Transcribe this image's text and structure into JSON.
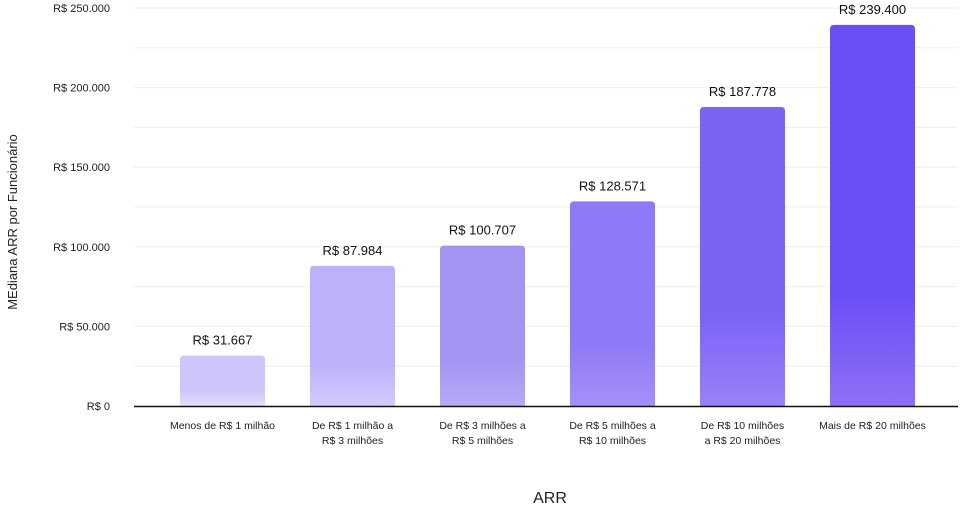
{
  "chart_data": {
    "type": "bar",
    "title": "",
    "xlabel": "ARR",
    "ylabel": "MEdiana ARR por Funcionário",
    "categories": [
      [
        "Menos de R$ 1 milhão"
      ],
      [
        "De R$ 1 milhão a",
        "R$ 3 milhões"
      ],
      [
        "De R$ 3 milhões a",
        "R$ 5 milhões"
      ],
      [
        "De R$ 5 milhões a",
        "R$ 10 milhões"
      ],
      [
        "De R$ 10 milhões",
        "a R$ 20 milhões"
      ],
      [
        "Mais de  R$ 20 milhões"
      ]
    ],
    "values": [
      31667,
      87984,
      100707,
      128571,
      187778,
      239400
    ],
    "value_labels": [
      "R$ 31.667",
      "R$ 87.984",
      "R$ 100.707",
      "R$ 128.571",
      "R$ 187.778",
      "R$ 239.400"
    ],
    "ylim": [
      0,
      250000
    ],
    "yticks": [
      0,
      50000,
      100000,
      150000,
      200000,
      250000
    ],
    "ytick_labels": [
      "R$ 0",
      "R$ 50.000",
      "R$ 100.000",
      "R$ 150.000",
      "R$ 200.000",
      "R$ 250.000"
    ],
    "grid": true,
    "legend": "none",
    "colors": {
      "bar_light": "#dcd6fb",
      "bar_mid": "#a897f5",
      "bar_dark": "#6d4ff5",
      "axis": "#111111",
      "grid": "#eeeeee"
    }
  }
}
